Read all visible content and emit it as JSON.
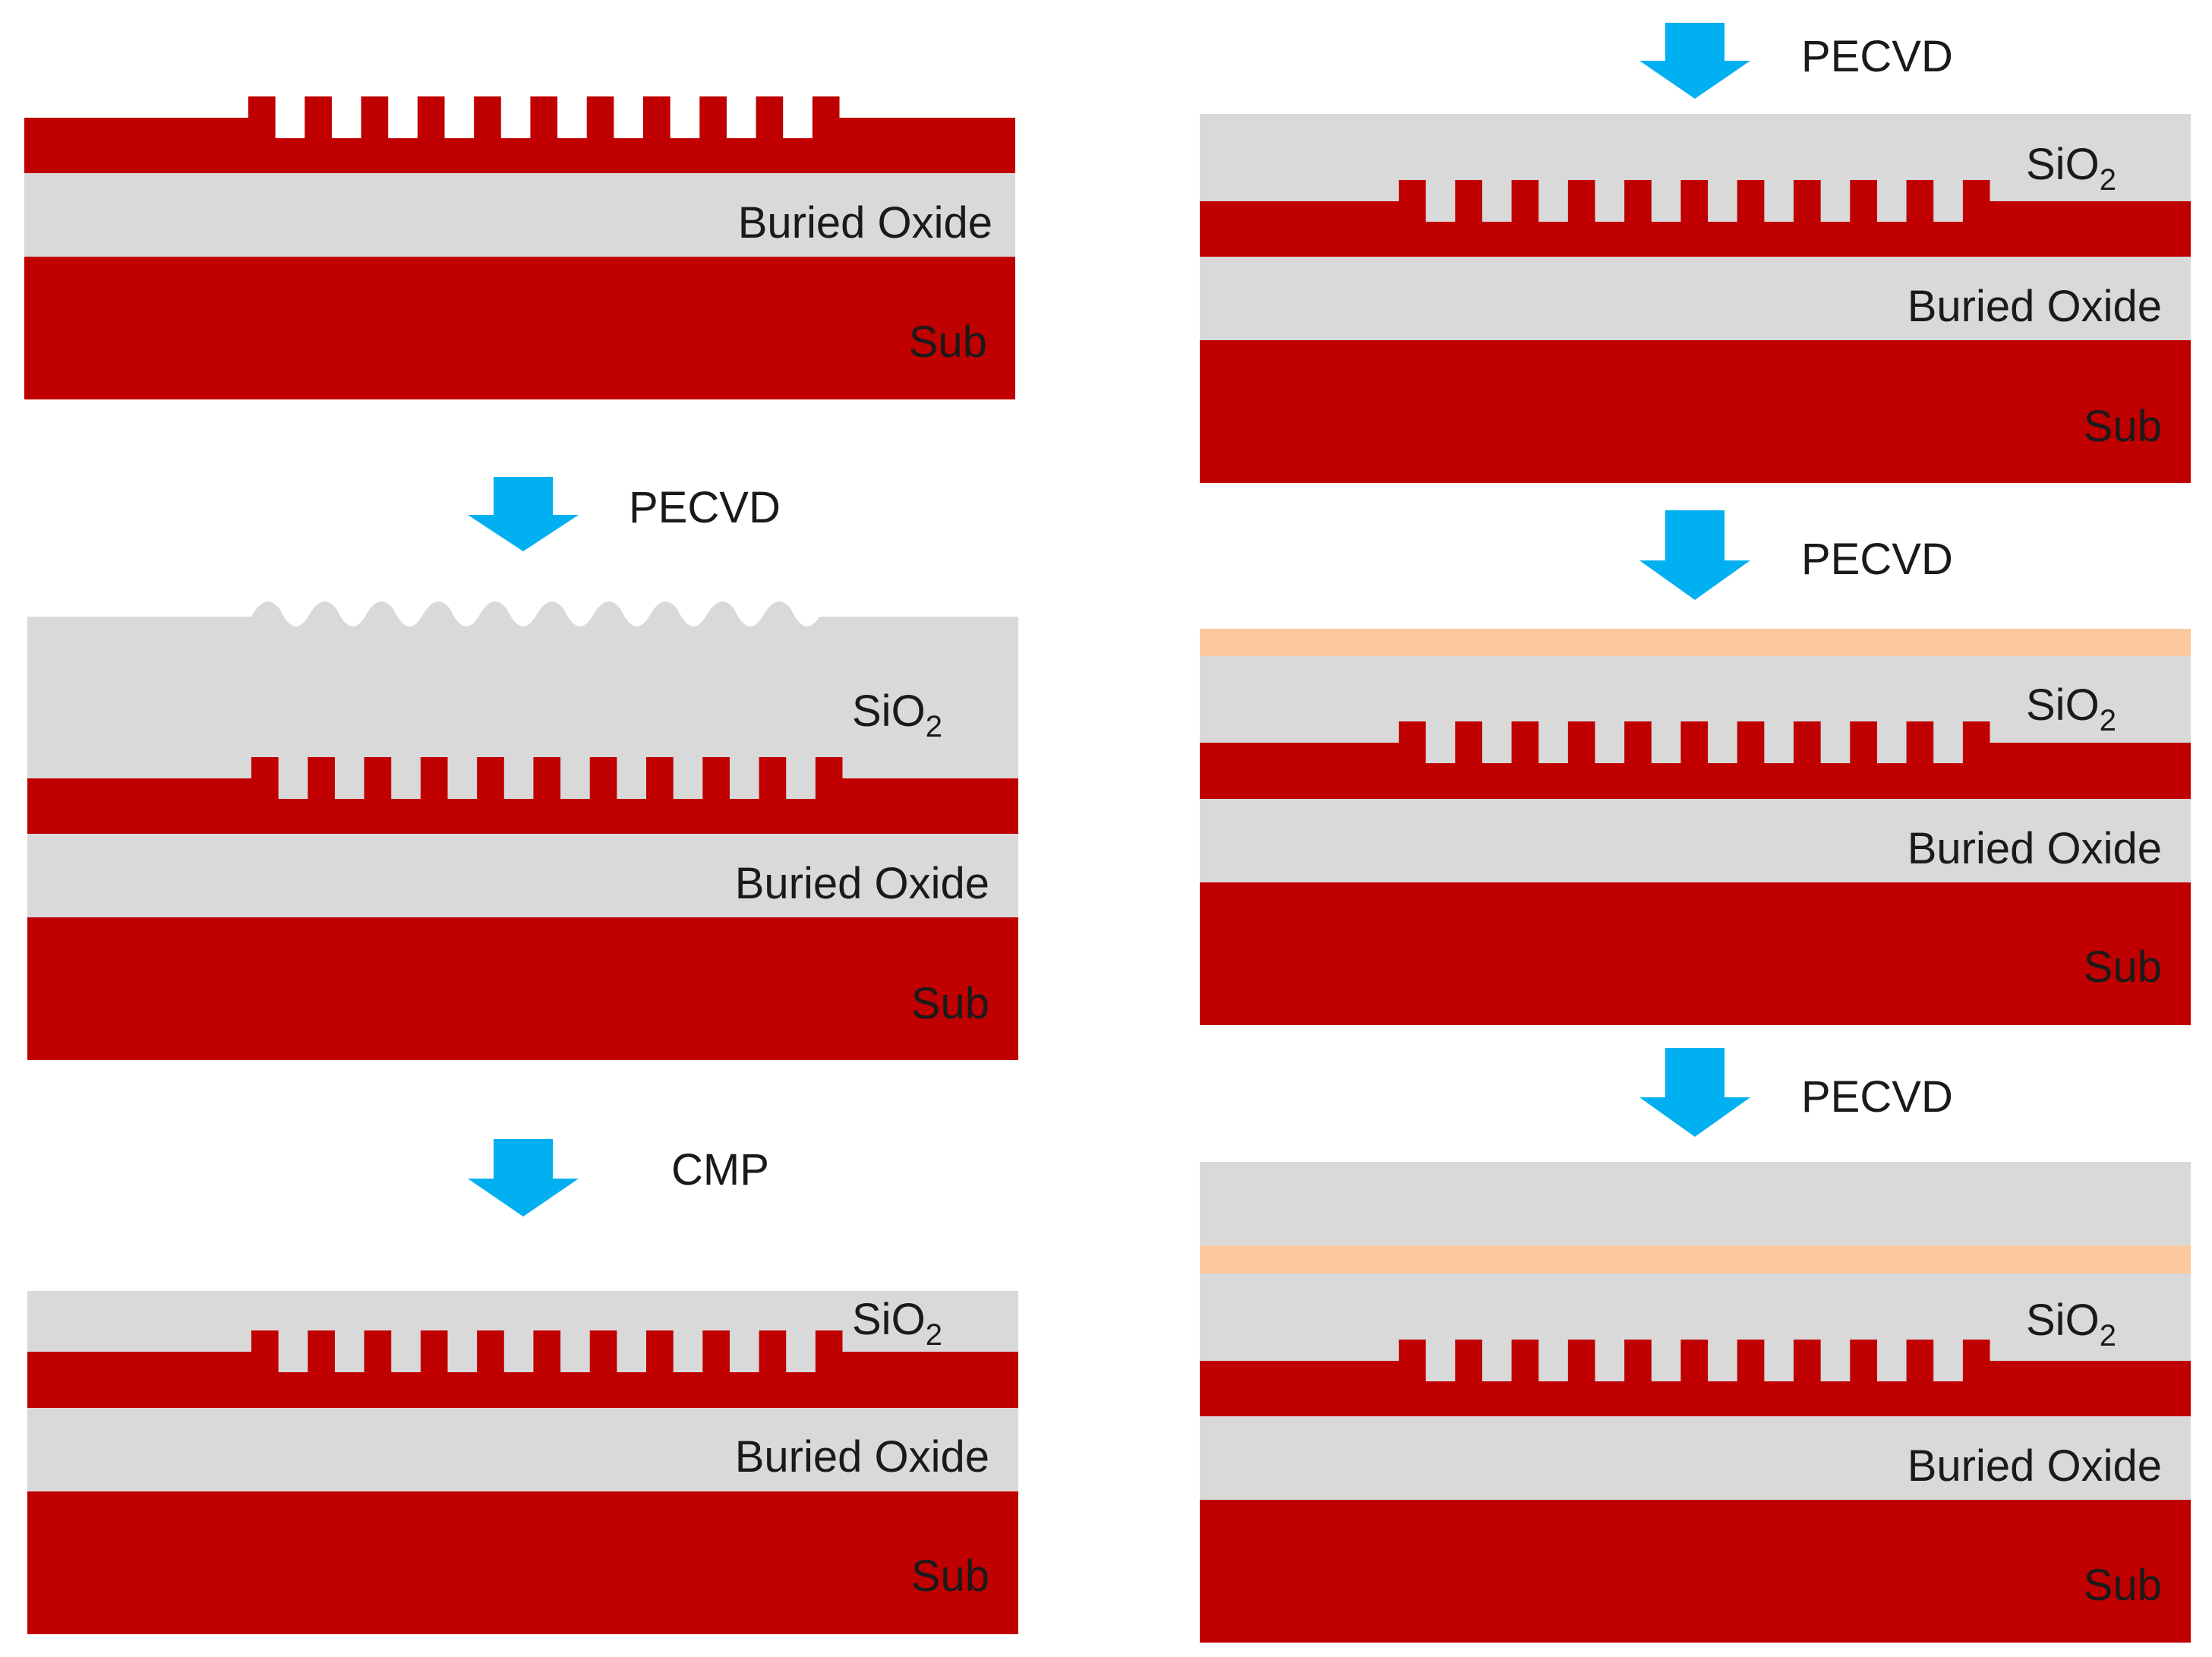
{
  "colors": {
    "silicon": "#c00000",
    "oxide": "#d9d9d9",
    "film": "#fbc99d",
    "arrow": "#00b0f0",
    "text": "#1a1a1a",
    "background": "#ffffff"
  },
  "labels": {
    "buried_oxide": "Buried Oxide",
    "substrate": "Sub",
    "sio2_base": "SiO",
    "sio2_sub": "2"
  },
  "steps": [
    {
      "label": "PECVD"
    },
    {
      "label": "CMP"
    },
    {
      "label": "PECVD"
    },
    {
      "label": "PECVD"
    },
    {
      "label": "PECVD"
    }
  ],
  "stacks": [
    {
      "id": "initial-grating",
      "oxide_cover": false,
      "wavy_top": false,
      "film_layers": 0
    },
    {
      "id": "oxide-deposited",
      "oxide_cover": true,
      "wavy_top": true,
      "film_layers": 0
    },
    {
      "id": "planarized",
      "oxide_cover": true,
      "wavy_top": false,
      "film_layers": 0
    },
    {
      "id": "oxide-cladding",
      "oxide_cover": true,
      "wavy_top": false,
      "film_layers": 0
    },
    {
      "id": "film-deposited",
      "oxide_cover": true,
      "wavy_top": false,
      "film_layers": 1
    },
    {
      "id": "top-cladding",
      "oxide_cover": true,
      "wavy_top": false,
      "film_layers": 1
    }
  ]
}
